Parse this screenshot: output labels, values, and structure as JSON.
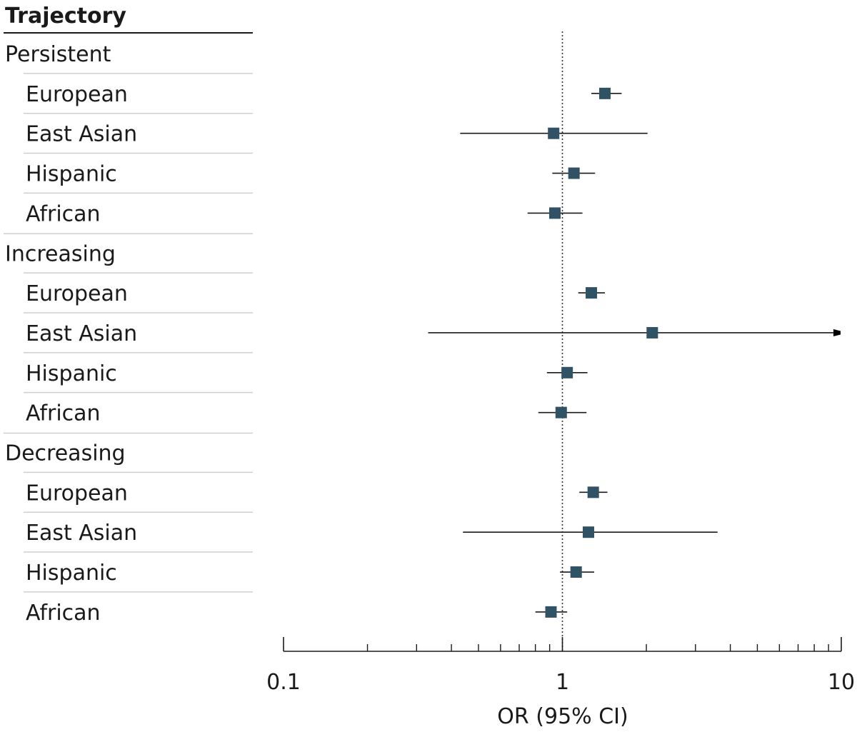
{
  "chart_data": {
    "type": "forest",
    "header": "Trajectory",
    "xlabel": "OR (95% CI)",
    "xscale": "log",
    "xlim": [
      0.1,
      10
    ],
    "xticks": [
      {
        "value": 0.1,
        "label": "0.1"
      },
      {
        "value": 1,
        "label": "1"
      },
      {
        "value": 10,
        "label": "10"
      }
    ],
    "reference_line": 1,
    "marker_color": "#2f5264",
    "line_color": "#1a1a1a",
    "groups": [
      {
        "name": "Persistent",
        "rows": [
          {
            "label": "European",
            "or": 1.42,
            "lower": 1.27,
            "upper": 1.63
          },
          {
            "label": "East Asian",
            "or": 0.93,
            "lower": 0.43,
            "upper": 2.02
          },
          {
            "label": "Hispanic",
            "or": 1.1,
            "lower": 0.92,
            "upper": 1.31
          },
          {
            "label": "African",
            "or": 0.94,
            "lower": 0.75,
            "upper": 1.18
          }
        ]
      },
      {
        "name": "Increasing",
        "rows": [
          {
            "label": "European",
            "or": 1.27,
            "lower": 1.14,
            "upper": 1.42
          },
          {
            "label": "East Asian",
            "or": 2.1,
            "lower": 0.33,
            "upper": 10,
            "arrow": true
          },
          {
            "label": "Hispanic",
            "or": 1.04,
            "lower": 0.88,
            "upper": 1.23
          },
          {
            "label": "African",
            "or": 0.99,
            "lower": 0.82,
            "upper": 1.22
          }
        ]
      },
      {
        "name": "Decreasing",
        "rows": [
          {
            "label": "European",
            "or": 1.29,
            "lower": 1.15,
            "upper": 1.45
          },
          {
            "label": "East Asian",
            "or": 1.24,
            "lower": 0.44,
            "upper": 3.6
          },
          {
            "label": "Hispanic",
            "or": 1.12,
            "lower": 0.98,
            "upper": 1.3
          },
          {
            "label": "African",
            "or": 0.91,
            "lower": 0.8,
            "upper": 1.04
          }
        ]
      }
    ]
  }
}
